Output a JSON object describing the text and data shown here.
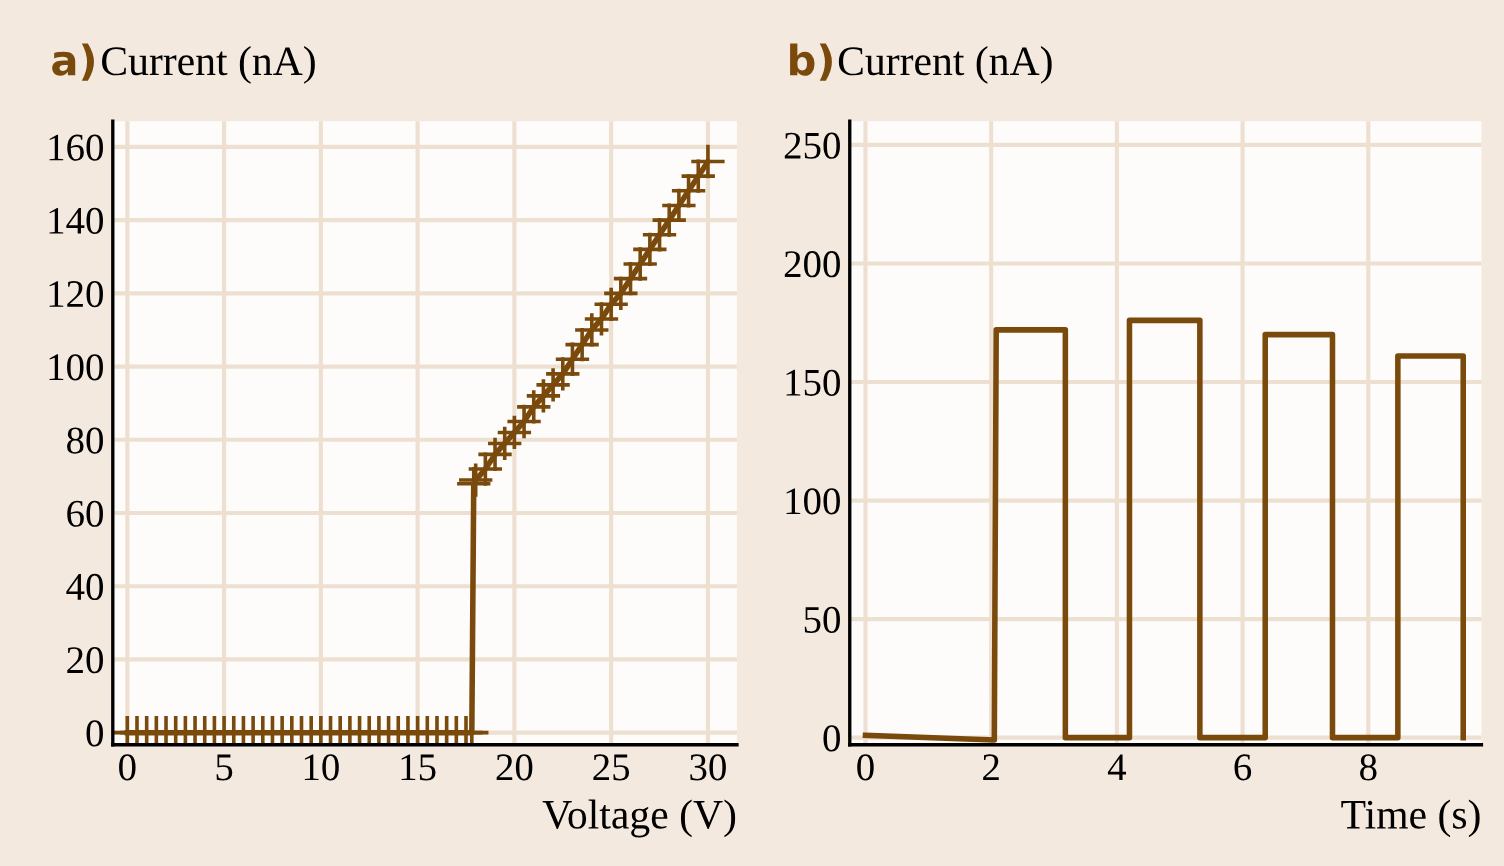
{
  "chart_data": [
    {
      "type": "line",
      "title": "a)",
      "ylabel": "Current (nA)",
      "xlabel": "Voltage (V)",
      "xlim": [
        -0.75,
        31.5
      ],
      "ylim": [
        -3.3,
        167
      ],
      "xticks": [
        0,
        5,
        10,
        15,
        20,
        25,
        30
      ],
      "yticks": [
        0,
        20,
        40,
        60,
        80,
        100,
        120,
        140,
        160
      ],
      "grid": true,
      "marker": "cross",
      "line_style": "solid",
      "series": [
        {
          "color": "#7a4a0c",
          "x": [
            0,
            0.5,
            1,
            1.5,
            2,
            2.5,
            3,
            3.5,
            4,
            4.5,
            5,
            5.5,
            6,
            6.5,
            7,
            7.5,
            8,
            8.5,
            9,
            9.5,
            10,
            10.5,
            11,
            11.5,
            12,
            12.5,
            13,
            13.5,
            14,
            14.5,
            15,
            15.5,
            16,
            16.5,
            17,
            17.5,
            17.8,
            17.9,
            18,
            18.5,
            19,
            19.5,
            20,
            20.5,
            21,
            21.5,
            22,
            22.5,
            23,
            23.5,
            24,
            24.5,
            25,
            25.5,
            26,
            26.5,
            27,
            27.5,
            28,
            28.5,
            29,
            29.5,
            30
          ],
          "values": [
            0,
            0,
            0,
            0,
            0,
            0,
            0,
            0,
            0,
            0,
            0,
            0,
            0,
            0,
            0,
            0,
            0,
            0,
            0,
            0,
            0,
            0,
            0,
            0,
            0,
            0,
            0,
            0,
            0,
            0,
            0,
            0,
            0,
            0,
            0,
            0,
            0,
            68,
            69,
            72,
            76,
            79,
            82,
            85,
            89,
            92,
            95,
            98,
            102,
            106,
            110,
            113,
            117,
            120,
            124,
            128,
            132,
            136,
            140,
            144,
            148,
            152,
            156
          ]
        }
      ]
    },
    {
      "type": "line",
      "title": "b)",
      "ylabel": "Current (nA)",
      "xlabel": "Time (s)",
      "xlim": [
        -0.25,
        9.8
      ],
      "ylim": [
        -3,
        260
      ],
      "xticks": [
        0,
        2,
        4,
        6,
        8
      ],
      "yticks": [
        0,
        50,
        100,
        150,
        200,
        250
      ],
      "grid": true,
      "line_style": "solid",
      "series": [
        {
          "color": "#7a4a0c",
          "x": [
            0,
            2.05,
            2.08,
            3.18,
            3.18,
            4.2,
            4.2,
            5.32,
            5.32,
            6.36,
            6.36,
            7.43,
            7.43,
            8.47,
            8.47,
            9.51,
            9.51
          ],
          "values": [
            1,
            -1,
            172,
            172,
            0,
            0,
            176,
            176,
            0,
            0,
            170,
            170,
            0,
            0,
            161,
            161,
            0
          ]
        }
      ]
    }
  ]
}
